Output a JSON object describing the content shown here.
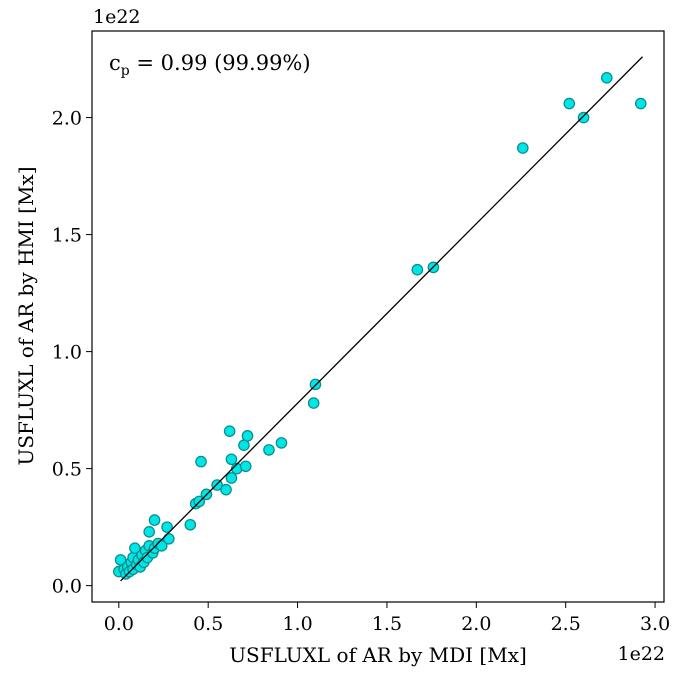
{
  "chart_data": {
    "type": "scatter",
    "title": "",
    "xlabel": "USFLUXL of AR by MDI [Mx]",
    "ylabel": "USFLUXL of AR by HMI [Mx]",
    "x_offset_label": "1e22",
    "y_offset_label": "1e22",
    "xlim": [
      -0.15,
      3.05
    ],
    "ylim": [
      -0.07,
      2.37
    ],
    "x_ticks": [
      0.0,
      0.5,
      1.0,
      1.5,
      2.0,
      2.5,
      3.0
    ],
    "x_tick_labels": [
      "0.0",
      "0.5",
      "1.0",
      "1.5",
      "2.0",
      "2.5",
      "3.0"
    ],
    "y_ticks": [
      0.0,
      0.5,
      1.0,
      1.5,
      2.0
    ],
    "y_tick_labels": [
      "0.0",
      "0.5",
      "1.0",
      "1.5",
      "2.0"
    ],
    "grid": false,
    "annotation": {
      "prefix": "c",
      "subscript": "p",
      "text": " = 0.99 (99.99%)"
    },
    "marker_color": "#00e5e5",
    "marker_edge_color": "#0a8a8a",
    "fit_line": {
      "x": [
        0.01,
        2.93
      ],
      "y": [
        0.02,
        2.26
      ],
      "color": "#000000"
    },
    "points": [
      {
        "x": 0.0,
        "y": 0.06
      },
      {
        "x": 0.01,
        "y": 0.11
      },
      {
        "x": 0.03,
        "y": 0.07
      },
      {
        "x": 0.04,
        "y": 0.05
      },
      {
        "x": 0.05,
        "y": 0.08
      },
      {
        "x": 0.06,
        "y": 0.06
      },
      {
        "x": 0.07,
        "y": 0.1
      },
      {
        "x": 0.08,
        "y": 0.12
      },
      {
        "x": 0.08,
        "y": 0.07
      },
      {
        "x": 0.09,
        "y": 0.16
      },
      {
        "x": 0.1,
        "y": 0.09
      },
      {
        "x": 0.11,
        "y": 0.11
      },
      {
        "x": 0.12,
        "y": 0.08
      },
      {
        "x": 0.13,
        "y": 0.13
      },
      {
        "x": 0.14,
        "y": 0.1
      },
      {
        "x": 0.15,
        "y": 0.15
      },
      {
        "x": 0.16,
        "y": 0.12
      },
      {
        "x": 0.17,
        "y": 0.17
      },
      {
        "x": 0.17,
        "y": 0.23
      },
      {
        "x": 0.19,
        "y": 0.14
      },
      {
        "x": 0.2,
        "y": 0.16
      },
      {
        "x": 0.2,
        "y": 0.28
      },
      {
        "x": 0.22,
        "y": 0.18
      },
      {
        "x": 0.24,
        "y": 0.17
      },
      {
        "x": 0.27,
        "y": 0.25
      },
      {
        "x": 0.28,
        "y": 0.2
      },
      {
        "x": 0.4,
        "y": 0.26
      },
      {
        "x": 0.43,
        "y": 0.35
      },
      {
        "x": 0.45,
        "y": 0.36
      },
      {
        "x": 0.46,
        "y": 0.53
      },
      {
        "x": 0.49,
        "y": 0.39
      },
      {
        "x": 0.55,
        "y": 0.43
      },
      {
        "x": 0.6,
        "y": 0.41
      },
      {
        "x": 0.62,
        "y": 0.66
      },
      {
        "x": 0.63,
        "y": 0.46
      },
      {
        "x": 0.63,
        "y": 0.54
      },
      {
        "x": 0.66,
        "y": 0.5
      },
      {
        "x": 0.7,
        "y": 0.6
      },
      {
        "x": 0.71,
        "y": 0.51
      },
      {
        "x": 0.72,
        "y": 0.64
      },
      {
        "x": 0.84,
        "y": 0.58
      },
      {
        "x": 0.91,
        "y": 0.61
      },
      {
        "x": 1.09,
        "y": 0.78
      },
      {
        "x": 1.1,
        "y": 0.86
      },
      {
        "x": 1.67,
        "y": 1.35
      },
      {
        "x": 1.76,
        "y": 1.36
      },
      {
        "x": 2.26,
        "y": 1.87
      },
      {
        "x": 2.52,
        "y": 2.06
      },
      {
        "x": 2.6,
        "y": 2.0
      },
      {
        "x": 2.73,
        "y": 2.17
      },
      {
        "x": 2.92,
        "y": 2.06
      }
    ]
  }
}
